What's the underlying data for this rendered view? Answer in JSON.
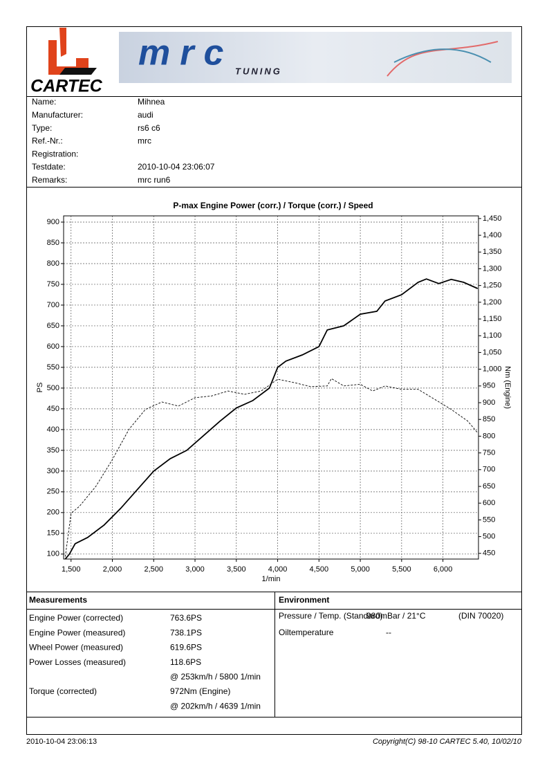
{
  "header": {
    "logo": "CARTEC",
    "banner_brand": "mrc",
    "banner_sub": "TUNING"
  },
  "info": [
    {
      "label": "Name:",
      "value": "Mihnea"
    },
    {
      "label": "Manufacturer:",
      "value": "audi"
    },
    {
      "label": "Type:",
      "value": "rs6 c6"
    },
    {
      "label": "Ref.-Nr.:",
      "value": "mrc"
    },
    {
      "label": "Registration:"
    },
    {
      "label": "Testdate:",
      "value": "2010-10-04 23:06:07"
    },
    {
      "label": "Remarks:",
      "value": "mrc run6"
    }
  ],
  "chart_data": {
    "type": "line",
    "title": "P-max Engine Power (corr.) / Torque (corr.) / Speed",
    "xlabel": "1/min",
    "ylabel": "PS",
    "y2label": "Nm (Engine)",
    "xlim": [
      1410,
      6430
    ],
    "ylim": [
      88,
      915
    ],
    "y2lim": [
      433,
      1458
    ],
    "xticks": [
      {
        "value": 1500,
        "label": "1,500"
      },
      {
        "value": 2000,
        "label": "2,000"
      },
      {
        "value": 2500,
        "label": "2,500"
      },
      {
        "value": 3000,
        "label": "3,000"
      },
      {
        "value": 3500,
        "label": "3,500"
      },
      {
        "value": 4000,
        "label": "4,000"
      },
      {
        "value": 4500,
        "label": "4,500"
      },
      {
        "value": 5000,
        "label": "5,000"
      },
      {
        "value": 5500,
        "label": "5,500"
      },
      {
        "value": 6000,
        "label": "6,000"
      }
    ],
    "yticks": [
      100,
      150,
      200,
      250,
      300,
      350,
      400,
      450,
      500,
      550,
      600,
      650,
      700,
      750,
      800,
      850,
      900
    ],
    "y2ticks": [
      450,
      500,
      550,
      600,
      650,
      700,
      750,
      800,
      850,
      900,
      950,
      {
        "value": 1000,
        "label": "1,000"
      },
      {
        "value": 1050,
        "label": "1,050"
      },
      {
        "value": 1100,
        "label": "1,100"
      },
      {
        "value": 1150,
        "label": "1,150"
      },
      {
        "value": 1200,
        "label": "1,200"
      },
      {
        "value": 1250,
        "label": "1,250"
      },
      {
        "value": 1300,
        "label": "1,300"
      },
      {
        "value": 1350,
        "label": "1,350"
      },
      {
        "value": 1400,
        "label": "1,400"
      },
      {
        "value": 1450,
        "label": "1,450"
      }
    ],
    "grid": true,
    "series": [
      {
        "color": "#000000",
        "style": "solid",
        "x": [
          1430,
          1480,
          1550,
          1700,
          1900,
          2100,
          2300,
          2500,
          2700,
          2900,
          3100,
          3300,
          3500,
          3700,
          3900,
          4000,
          4100,
          4300,
          4500,
          4600,
          4800,
          5000,
          5200,
          5300,
          5500,
          5700,
          5800,
          5950,
          6100,
          6250,
          6420
        ],
        "values": [
          88,
          100,
          125,
          140,
          170,
          210,
          255,
          300,
          330,
          350,
          385,
          420,
          452,
          470,
          500,
          550,
          565,
          580,
          600,
          640,
          650,
          678,
          685,
          710,
          725,
          755,
          763,
          752,
          762,
          755,
          740
        ]
      },
      {
        "color": "#000000",
        "style": "dashed",
        "axis": "y2",
        "x": [
          1430,
          1500,
          1600,
          1800,
          2000,
          2200,
          2400,
          2600,
          2800,
          3000,
          3200,
          3400,
          3600,
          3800,
          4000,
          4200,
          4400,
          4600,
          4650,
          4800,
          5000,
          5150,
          5300,
          5500,
          5700,
          5900,
          6100,
          6300,
          6420
        ],
        "values": [
          440,
          570,
          590,
          650,
          730,
          820,
          880,
          902,
          890,
          915,
          920,
          935,
          925,
          935,
          970,
          960,
          948,
          950,
          972,
          950,
          955,
          935,
          950,
          940,
          940,
          910,
          880,
          845,
          810
        ]
      }
    ]
  },
  "measurements": {
    "title": "Measurements",
    "rows": [
      {
        "label": "Engine Power (corrected)",
        "value": "763.6PS"
      },
      {
        "label": "Engine Power (measured)",
        "value": "738.1PS"
      },
      {
        "label": "Wheel Power (measured)",
        "value": "619.6PS"
      },
      {
        "label": "Power Losses (measured)",
        "value": "118.6PS"
      },
      {
        "value": "@ 253km/h / 5800 1/min"
      },
      {
        "label": "Torque (corrected)",
        "value": "972Nm (Engine)"
      },
      {
        "value": "@ 202km/h / 4639 1/min"
      }
    ]
  },
  "environment": {
    "title": "Environment",
    "pressure_label": "Pressure / Temp. (Standard)",
    "pressure_value": "980mBar / 21°C",
    "pressure_norm": "(DIN 70020)",
    "oil_label": "Oiltemperature",
    "oil_value": "--"
  },
  "footer": {
    "date": "2010-10-04 23:06:13",
    "copyright": "Copyright(C) 98-10 CARTEC 5.40, 10/02/10"
  }
}
